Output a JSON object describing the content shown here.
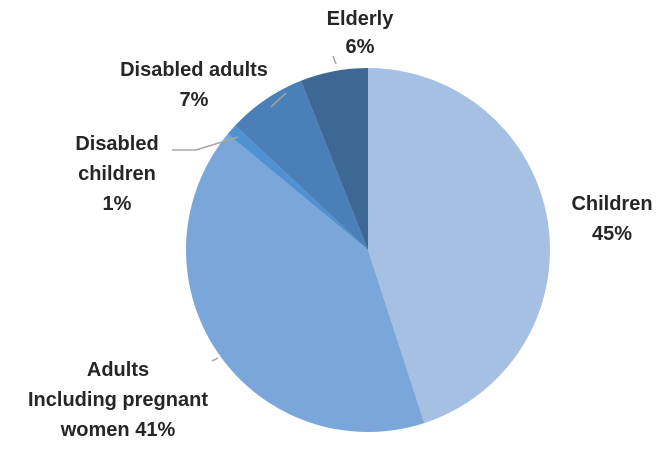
{
  "chart_data": {
    "type": "pie",
    "title": "",
    "slices": [
      {
        "name": "Children",
        "value": 45,
        "value_label": "45%",
        "color": "#a6c0e4",
        "label_lines": [
          "Children",
          "45%"
        ]
      },
      {
        "name": "Adults Including pregnant women",
        "value": 41,
        "value_label": "41%",
        "color": "#7aa6d9",
        "label_lines": [
          "Adults",
          "Including pregnant",
          "women 41%"
        ]
      },
      {
        "name": "Disabled children",
        "value": 1,
        "value_label": "1%",
        "color": "#4f91d1",
        "label_lines": [
          "Disabled",
          "children",
          "1%"
        ]
      },
      {
        "name": "Disabled adults",
        "value": 7,
        "value_label": "7%",
        "color": "#4a7fb8",
        "label_lines": [
          "Disabled adults",
          "7%"
        ]
      },
      {
        "name": "Elderly",
        "value": 6,
        "value_label": "6%",
        "color": "#3e6894",
        "label_lines": [
          "Elderly",
          "6%"
        ]
      }
    ]
  }
}
